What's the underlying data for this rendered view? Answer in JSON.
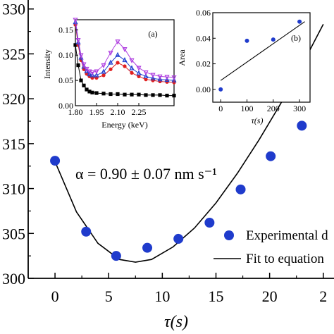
{
  "chart_data": [
    {
      "type": "scatter",
      "title": "",
      "xlabel": "τ(s)",
      "ylabel": "",
      "xlim": [
        -2.5,
        26
      ],
      "ylim": [
        300,
        331
      ],
      "xticks": [
        "0",
        "5",
        "10",
        "15",
        "20",
        "2"
      ],
      "yticks": [
        "300",
        "305",
        "310",
        "315",
        "320",
        "325",
        "330"
      ],
      "grid": false,
      "legend_position": "bottom-right",
      "annotation": "α = 0.90 ± 0.07 nm s⁻¹",
      "series": [
        {
          "name": "Experimental d",
          "color": "#1f3bcc",
          "marker": "circle",
          "points": [
            {
              "x": 0,
              "y": 313.1
            },
            {
              "x": 2.9,
              "y": 305.2
            },
            {
              "x": 5.7,
              "y": 302.5
            },
            {
              "x": 8.6,
              "y": 303.4
            },
            {
              "x": 11.5,
              "y": 304.4
            },
            {
              "x": 14.4,
              "y": 306.2
            },
            {
              "x": 17.3,
              "y": 309.9
            },
            {
              "x": 20.1,
              "y": 313.6
            },
            {
              "x": 23.0,
              "y": 317.0
            }
          ]
        },
        {
          "name": "Fit to equation",
          "color": "#000000",
          "type": "line",
          "points": [
            {
              "x": 0,
              "y": 313.0
            },
            {
              "x": 2,
              "y": 307.4
            },
            {
              "x": 4,
              "y": 303.9
            },
            {
              "x": 6,
              "y": 302.1
            },
            {
              "x": 7.5,
              "y": 301.8
            },
            {
              "x": 9,
              "y": 302.1
            },
            {
              "x": 11,
              "y": 303.5
            },
            {
              "x": 13,
              "y": 305.6
            },
            {
              "x": 15,
              "y": 308.4
            },
            {
              "x": 17,
              "y": 311.7
            },
            {
              "x": 19,
              "y": 315.4
            },
            {
              "x": 21,
              "y": 319.4
            },
            {
              "x": 23,
              "y": 323.7
            },
            {
              "x": 25,
              "y": 328.3
            }
          ]
        }
      ]
    },
    {
      "type": "line",
      "panel_label": "(a)",
      "xlabel": "Energy (keV)",
      "ylabel": "Intensity",
      "xlim": [
        1.8,
        2.5
      ],
      "ylim": [
        0,
        0.17
      ],
      "xticks": [
        "1.80",
        "1.95",
        "2.10",
        "2.25"
      ],
      "yticks": [
        "0.00",
        "0.05",
        "0.10",
        "0.15"
      ],
      "grid": false,
      "series": [
        {
          "color": "#000000",
          "marker": "square",
          "x": [
            1.8,
            1.82,
            1.84,
            1.86,
            1.88,
            1.9,
            1.92,
            1.95,
            2.0,
            2.05,
            2.1,
            2.15,
            2.2,
            2.25,
            2.3,
            2.35,
            2.4,
            2.45,
            2.5
          ],
          "values": [
            0.12,
            0.08,
            0.05,
            0.04,
            0.032,
            0.028,
            0.026,
            0.025,
            0.024,
            0.023,
            0.023,
            0.022,
            0.022,
            0.022,
            0.021,
            0.021,
            0.021,
            0.02,
            0.02
          ]
        },
        {
          "color": "#e02020",
          "marker": "circle",
          "x": [
            1.8,
            1.82,
            1.84,
            1.86,
            1.88,
            1.9,
            1.92,
            1.95,
            2.0,
            2.05,
            2.1,
            2.15,
            2.2,
            2.25,
            2.3,
            2.35,
            2.4,
            2.45,
            2.5
          ],
          "values": [
            0.16,
            0.12,
            0.09,
            0.072,
            0.063,
            0.058,
            0.055,
            0.055,
            0.06,
            0.072,
            0.085,
            0.078,
            0.065,
            0.058,
            0.052,
            0.05,
            0.048,
            0.047,
            0.046
          ]
        },
        {
          "color": "#2040d0",
          "marker": "triangle-up",
          "x": [
            1.8,
            1.82,
            1.84,
            1.86,
            1.88,
            1.9,
            1.92,
            1.95,
            2.0,
            2.05,
            2.1,
            2.15,
            2.2,
            2.25,
            2.3,
            2.35,
            2.4,
            2.45,
            2.5
          ],
          "values": [
            0.165,
            0.125,
            0.095,
            0.077,
            0.068,
            0.062,
            0.06,
            0.06,
            0.067,
            0.085,
            0.1,
            0.09,
            0.074,
            0.064,
            0.058,
            0.054,
            0.052,
            0.051,
            0.05
          ]
        },
        {
          "color": "#b040e0",
          "marker": "triangle-down",
          "x": [
            1.8,
            1.82,
            1.84,
            1.86,
            1.88,
            1.9,
            1.92,
            1.95,
            2.0,
            2.05,
            2.1,
            2.15,
            2.2,
            2.25,
            2.3,
            2.35,
            2.4,
            2.45,
            2.5
          ],
          "values": [
            0.17,
            0.13,
            0.1,
            0.082,
            0.073,
            0.068,
            0.066,
            0.068,
            0.08,
            0.105,
            0.127,
            0.112,
            0.09,
            0.075,
            0.066,
            0.061,
            0.058,
            0.057,
            0.056
          ]
        }
      ]
    },
    {
      "type": "scatter",
      "panel_label": "(b)",
      "xlabel": "τ(s)",
      "ylabel": "Area",
      "xlim": [
        -30,
        340
      ],
      "ylim": [
        -0.01,
        0.06
      ],
      "xticks": [
        "0",
        "100",
        "200",
        "300"
      ],
      "yticks": [
        "0.00",
        "0.02",
        "0.04",
        "0.06"
      ],
      "grid": false,
      "series": [
        {
          "color": "#1f3bcc",
          "marker": "circle",
          "x": [
            0,
            100,
            200,
            300
          ],
          "values": [
            0.0,
            0.038,
            0.039,
            0.053
          ]
        },
        {
          "color": "#000000",
          "type": "line",
          "x": [
            0,
            320
          ],
          "values": [
            0.007,
            0.053
          ]
        }
      ]
    }
  ]
}
